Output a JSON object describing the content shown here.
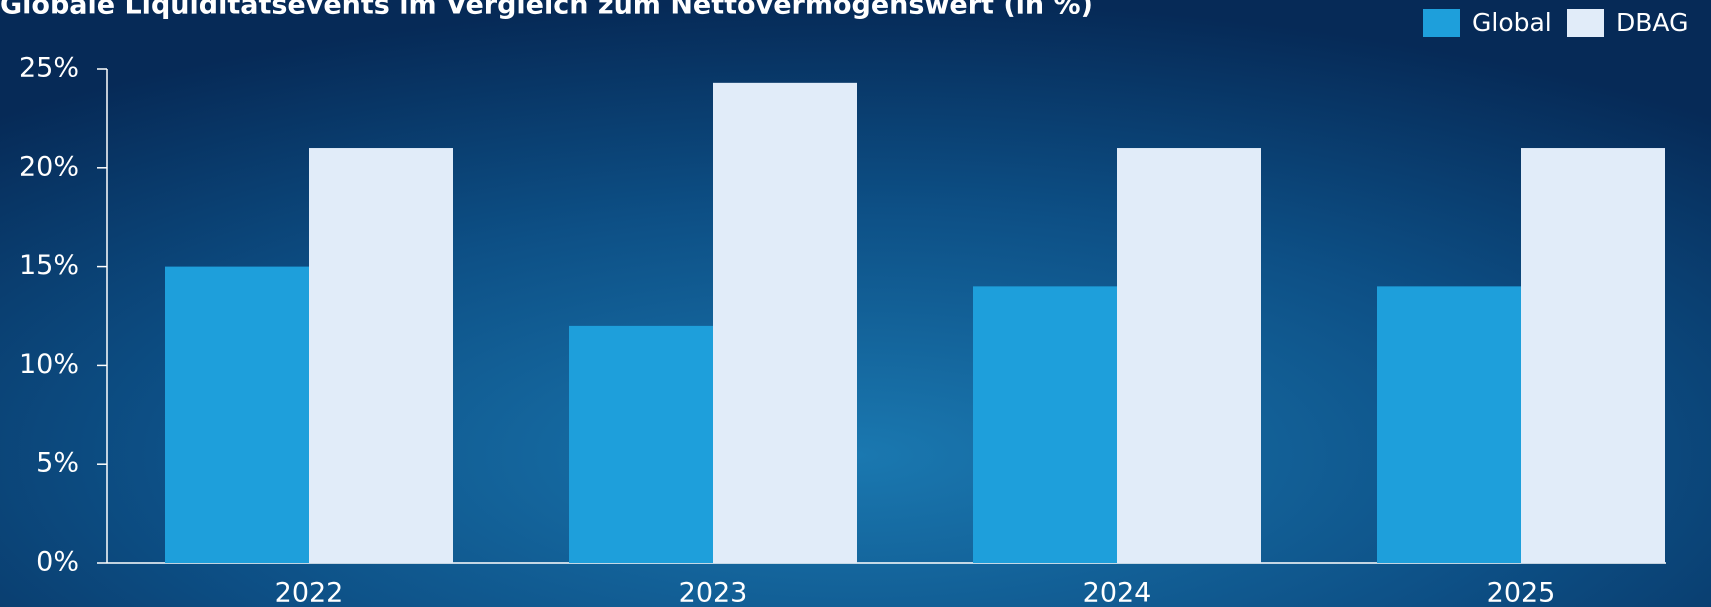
{
  "chart_data": {
    "type": "bar",
    "title": "Globale Liquiditätsevents im Vergleich zum Nettovermögenswert (in %)",
    "categories": [
      "2022",
      "2023",
      "2024",
      "2025"
    ],
    "series": [
      {
        "name": "Global",
        "color": "#1e9fdb",
        "values": [
          15,
          12,
          14,
          14
        ]
      },
      {
        "name": "DBAG",
        "color": "#e1ecf9",
        "values": [
          21,
          24.3,
          21,
          21
        ]
      }
    ],
    "ylim": [
      0,
      25
    ],
    "yticks": [
      {
        "value": 0,
        "label": "0%"
      },
      {
        "value": 5,
        "label": "5%"
      },
      {
        "value": 10,
        "label": "10%"
      },
      {
        "value": 15,
        "label": "15%"
      },
      {
        "value": 20,
        "label": "20%"
      },
      {
        "value": 25,
        "label": "25%"
      }
    ],
    "legend": "top-right",
    "grid": false
  }
}
